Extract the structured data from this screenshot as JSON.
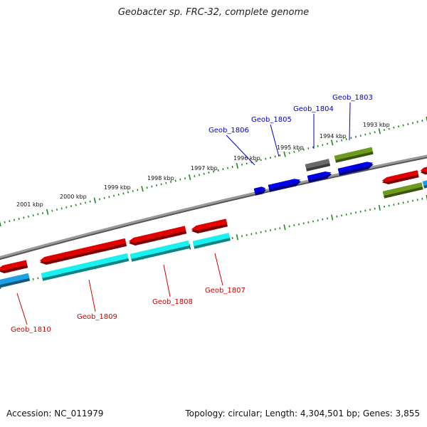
{
  "title": "Geobacter sp. FRC-32, complete genome",
  "footer": {
    "accession": "Accession: NC_011979",
    "topology": "Topology: circular; Length: 4,304,501 bp; Genes: 3,855"
  },
  "colors": {
    "backbone": "#8a8a8a",
    "ticks": "#1f8a1f",
    "label_top": "#0000cc",
    "label_bottom": "#cc0000",
    "gene_red": "#e00000",
    "gene_cyan": "#19f0f0",
    "gene_skyblue": "#1ea0e6",
    "gene_blue": "#0000e6",
    "gene_olive": "#6e9a1e",
    "gene_gray": "#6a6a6a"
  },
  "scale_labels": [
    {
      "text": "2001 kbp"
    },
    {
      "text": "2000 kbp"
    },
    {
      "text": "1999 kbp"
    },
    {
      "text": "1998 kbp"
    },
    {
      "text": "1997 kbp"
    },
    {
      "text": "1996 kbp"
    },
    {
      "text": "1995 kbp"
    },
    {
      "text": "1994 kbp"
    },
    {
      "text": "1993 kbp"
    }
  ],
  "genes_top": [
    {
      "label": "Geob_1806"
    },
    {
      "label": "Geob_1805"
    },
    {
      "label": "Geob_1804"
    },
    {
      "label": "Geob_1803"
    }
  ],
  "genes_bottom": [
    {
      "label": "Geob_1810"
    },
    {
      "label": "Geob_1809"
    },
    {
      "label": "Geob_1808"
    },
    {
      "label": "Geob_1807"
    }
  ]
}
